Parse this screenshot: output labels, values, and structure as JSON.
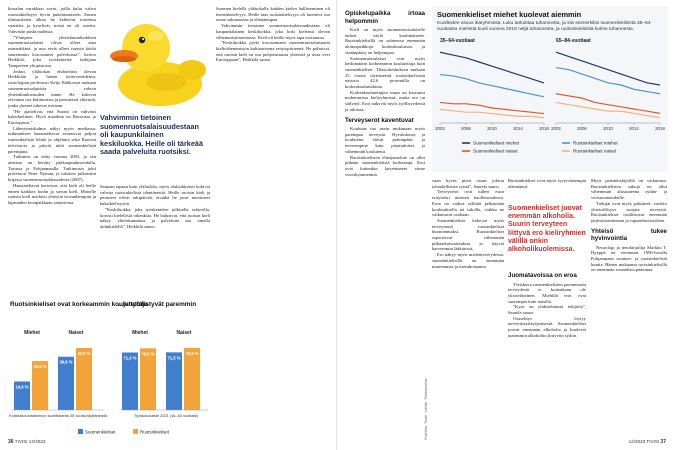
{
  "left_page": {
    "col1": [
      {
        "text": "kiesalan varakkaat suvut, joilla kului vahva ruotsinkielisyys hyvin pukeutumiseen. Ennen tilaisuuksien alkua he kehuivat toistensa vaatteita ja kyselivät, mistä ne oli ostettu. Vahvistin puskivaaleista."
      },
      {
        "text": "”Ylimpien yhteiskuntaluokkien suomenruotsalaiset olivat olleet aina esimerkkinä, ja nuo eivät olleet ruotsin kieltä suuremmin korostaneet palveluissa”, kertoo Heikkilä, joka työskentelee tutkijana Tampereen yliopistossa."
      },
      {
        "text": "Joskus yläluokan ehdotettiin olevan Heikkilän ja hänen työtovereidensa, sosiologian professori Keijo Rahkosen mukaan suomenruotsalaisista vahvin yhteenkuuluvuuden tunne. He kokevat olevansa osa kulttuurista ja perinteistä yhteisöä, jonka jäsenet tukevat toisiaan."
      },
      {
        "text": "”He ajattelivat, että Suomi on vahvasti kaksikielinen. Hyvä maailma on Ruotsissa ja Euroopassa.”"
      },
      {
        "text": "Lähestymiskulma näkyi myös mediassa: tutkimuksen haastateltavat seurasivat paljon ruotsinkielisiä lehtiä ja ohjelmia sekä Ruotsin televisiota ja pitivät niitä suomenkielisiä parempina."
      },
      {
        "text": "Tutkimus on tehty vuonna 2005, ja sen aineisto on kerätty pääkaupunkiseudulla, Turussa ja Pohjanmaalla. Tutkimusta johti professori Peter Nyman, ja tulokset julkaistiin kirjassa suomenruotsalaisuudesta (2007)."
      },
      {
        "text": "Haastateltavat kertoivat, että kieli oli heille ennen kaikkea kodin ja suvun kieli. Monelle ruotsin kieli merkitsi yhteyttä isovanhempiin ja lapsuuden kesäpaikkaan saaristossa."
      }
    ],
    "col2": [
      {
        "text": "Samaan tapaan kuin yläluokka, myös alaluokkaiset kokivat vahvaa ruotsinkielistä identiteettiä. Heille ruotsin kieli ja perinteet olivat arkipäivää, eivätkä he juuri miettineet kaksikielisyyttä."
      },
      {
        "text": "”Keskiluokka, joka työskentelee julkisella sektorilla, korosti kielellisiä oikeuksia. He halusivat, että ruotsin kieli näkyy yhteiskunnassa ja palveluita saa omalla äidinkielellä”, Heikkilä sanoo."
      }
    ],
    "col3": [
      {
        "text": "Suomen kielellä yläluokalle kahden kielen hallitseminen oli itsestäänselvyys. Heille taas ruotsinkielisyys oli luonteva osa omaa sukutaustaa ja elämäntapaa."
      },
      {
        "text": "Vahvimmin tietoinen suomenruotsalaisuudestaan oli kaupunkilainen keskiluokka, joka koki kielensä olevan vähemmistöasemassa. Kieli oli heille myös tapa erottautua."
      },
      {
        "text": "”Keskiluokka pyrki korostamaan suomenruotsalaisuutta kielivähemmistön kulttuurisena erityispiirteenä. He puhuivat, että ruotsin kieli on osa pohjoismaista yhteisöä ja avaa ovet Eurooppaan”, Heikkilä sanoo."
      }
    ],
    "pull_quote": "Vahvimmin tietoinen suomenruotsalaisuudestaan oli kaupunkilainen keskiluokka. Heille oli tärkeää saada palveluita ruotsiksi."
  },
  "bar_charts": [
    {
      "type": "bar",
      "title": "Ruotsinkieliset ovat korkeammin koulutettuja",
      "categories": [
        "Miehet",
        "Naiset"
      ],
      "series": [
        {
          "name": "Suomenkieliset",
          "color": "#3f7fcc",
          "values": [
            19.6,
            36.6
          ],
          "value_labels": [
            "19,6 %",
            "36,6 %"
          ]
        },
        {
          "name": "Ruotsinkieliset",
          "color": "#f2a33a",
          "values": [
            33.6,
            42.6
          ],
          "value_labels": [
            "33,6 %",
            "42,6 %"
          ]
        }
      ],
      "caption": "Korkeakoulututkinnon suorittaneita 25 vuotta täyttäneistä"
    },
    {
      "type": "bar",
      "title": "...ja työllistyvät paremmin",
      "categories": [
        "Miehet",
        "Naiset"
      ],
      "series": [
        {
          "color": "#3f7fcc",
          "values": [
            71.3,
            71.5
          ],
          "value_labels": [
            "71,3 %",
            "71,5 %"
          ]
        },
        {
          "color": "#f2a33a",
          "values": [
            76.5,
            76.9
          ],
          "value_labels": [
            "76,5 %",
            "76,9 %"
          ]
        }
      ],
      "caption": "Työssäoloaste 2021 (16–64 vuotiaat)"
    }
  ],
  "right_page": {
    "col4": [
      {
        "heading": "Opiskelupaikka irtoaa helpommin"
      },
      {
        "text": "Kieli on myös suomenruotsalaisille tärkeä väylä koulutukseen. Ruotsinkielisillä on suhteessa enemmän aloituspaikkoja korkeakouluissa, ja sisäänpääsy on helpompaa."
      },
      {
        "text": "Suomenruotsalaiset ovat myös keskimäärin korkeammin koulutettuja kuin suomenkieliset. Tilastokeskuksen mukaan 25 vuotta täyttäneistä ruotsinkielisistä naisista 42,6 prosentilla on korkeakoulututkinto."
      },
      {
        "text": "Korkeakoulutettujen osuus on kasvanut molemmissa kieliryhmissä, mutta ero on säilynyt. Erot näkyvät myös työllisyydessä ja tuloissa."
      },
      {
        "heading": "Terveyserot kaventuvat"
      },
      {
        "text": "Koulutus tuo usein mukanaan myös parempaa terveyttä. Hyvätuloiset ja koulutetut elävät pidempään ja terveempinä kuin pienituloiset ja vähemmän koulutetut."
      },
      {
        "text": "Ruotsinkielisten elinajanodote on ollut pitkään suomenkielisiä korkeampi. Erot ovat kuitenkin kaventuneet viime vuosikymmeninä."
      }
    ],
    "col5": [
      {
        "text": "vaan hyvin pieni osuus johtuu taloudellisista syistä”, Saarela sanoo."
      },
      {
        "text": "Terveyserot ovat tulleet esiin erityisesti miesten kuolleisuudessa. Eroa on vaikea selittää pelkästään koulutuksella tai tuloilla, vaikka ne vaikuttavat osaltaan."
      },
      {
        "text": "Suomenkieliset kokevat myös terveytensä ruotsinkielisiä huonommaksi. Ruotsinkieliset raportoivat vähemmän pitkäaikaissairauksia ja käyvät harvemmin lääkärissä."
      },
      {
        "text": "Ero näkyy myös mielenterveydessä: suomenkielisillä on enemmän masennusta ja itsetuhoisuutta."
      }
    ],
    "col6_top": [
      {
        "text": "Ruotsinkieliset ovat myös tyytyväisempiä elämäänsä."
      }
    ],
    "pull_quote": "Suomenkieliset juovat enemmän alkoholia. Suurin terveyteen liittyvä ero kieliryhmien välillä onkin alkoholikuolemissa.",
    "col6": [
      {
        "heading": "Juomatavoissa on eroa"
      },
      {
        "text": "Yleiskuva suomenkielisten paremmasta terveydestä ei kuitenkaan ole yksiselitteinen. Miehillä erot ovat suurempia kuin naisilla."
      },
      {
        "text": "”Kyse on yhdistelmästä tekijöitä”, Saarela sanoo."
      },
      {
        "text": "Osaselitys löytyy terveyskäyttäytymisestä. Suomenkieliset juovat enemmän alkoholia ja kuolevat useammin alkoholiin liittyviin syihin."
      }
    ],
    "col7": [
      {
        "text": "Myös perintötekijöillä on vaikutusta. Ruotsinkielisten sukuja on ollut vähemmän altistuneena sydän- ja verisuonitaudeille."
      },
      {
        "text": "Tutkijat ovat myös pohtineet, voisiko yhteisöllisyys suojata terveyttä. Ruotsinkieliset osallistuvat enemmän järjestötoimintaan ja vapaaehtoistyöhön."
      },
      {
        "heading": "Yhteisö tukee hyvinvointia"
      },
      {
        "text": "Neurologi ja tietokirjailija Markku T. Hyyppä on verrannut 1990-luvulla Pohjanmaan suomen- ja ruotsinkielisiä kuntia. Hänen mukaansa ruotsinkielisillä on enemmän sosiaalista pääomaa."
      }
    ],
    "side_credit": "Grafiikka: Tiede · Lähde: Tilastokeskus"
  },
  "line_chart": {
    "type": "line",
    "title": "Suomenkieliset miehet kuolevat aiemmin",
    "subtitle": "Kuolleiden osuus ikäryhmissä. Luku tarkoittaa tuhannesta, ja siis esimerkiksi suomenkielisistä 35–64-vuotiaista miehistä kuoli vuonna 2018 neljä tuhannesta, ja ruotsinkielisistä kolme tuhannesta.",
    "x": [
      2002,
      2004,
      2006,
      2008,
      2010,
      2012,
      2014,
      2016,
      2018
    ],
    "xticks": [
      2002,
      2006,
      2010,
      2014,
      2018
    ],
    "series": [
      {
        "name": "Suomenkieliset miehet",
        "color": "#1f3a6e"
      },
      {
        "name": "Ruotsinkieliset miehet",
        "color": "#4b95d6"
      },
      {
        "name": "Suomenkieliset naiset",
        "color": "#e2572b"
      },
      {
        "name": "Ruotsinkieliset naiset",
        "color": "#f4b07a"
      }
    ],
    "panels": [
      {
        "title": "35–64-vuotiaat",
        "values": [
          [
            6.2,
            6.0,
            5.8,
            5.5,
            5.2,
            4.9,
            4.6,
            4.3,
            4.0
          ],
          [
            4.6,
            4.5,
            4.3,
            4.0,
            3.8,
            3.6,
            3.4,
            3.2,
            3.0
          ],
          [
            2.6,
            2.5,
            2.5,
            2.4,
            2.2,
            2.1,
            2.0,
            1.9,
            1.8
          ],
          [
            2.1,
            2.0,
            1.9,
            1.9,
            1.8,
            1.7,
            1.6,
            1.6,
            1.5
          ]
        ]
      },
      {
        "title": "65–84-vuotiaat",
        "values": [
          [
            45,
            43,
            41,
            39,
            37,
            35,
            33,
            31,
            30
          ],
          [
            38,
            37,
            35,
            33,
            31,
            30,
            28,
            27,
            26
          ],
          [
            26,
            25,
            24,
            22,
            21,
            20,
            19,
            18,
            17
          ],
          [
            22,
            21,
            20,
            19,
            18,
            18,
            17,
            16,
            15
          ]
        ]
      }
    ]
  },
  "footer": {
    "left_number": "36",
    "left_label": "TIVISI 12/2023",
    "right_label": "12/2023 TIVISI",
    "right_number": "37"
  }
}
